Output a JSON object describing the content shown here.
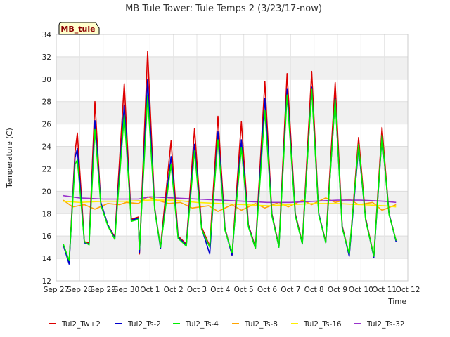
{
  "chart_data": {
    "type": "line",
    "title": "MB Tule Tower: Tule Temps 2 (3/23/17-now)",
    "xlabel": "Time",
    "ylabel": "Temperature (C)",
    "badge": "MB_tule",
    "ylim": [
      12,
      34
    ],
    "yticks": [
      12,
      14,
      16,
      18,
      20,
      22,
      24,
      26,
      28,
      30,
      32,
      34
    ],
    "xlim": [
      0,
      15
    ],
    "xticks": [
      {
        "pos": 0,
        "label": "Sep 27"
      },
      {
        "pos": 1,
        "label": "Sep 28"
      },
      {
        "pos": 2,
        "label": "Sep 29"
      },
      {
        "pos": 3,
        "label": "Sep 30"
      },
      {
        "pos": 4,
        "label": "Oct 1"
      },
      {
        "pos": 5,
        "label": "Oct 2"
      },
      {
        "pos": 6,
        "label": "Oct 3"
      },
      {
        "pos": 7,
        "label": "Oct 4"
      },
      {
        "pos": 8,
        "label": "Oct 5"
      },
      {
        "pos": 9,
        "label": "Oct 6"
      },
      {
        "pos": 10,
        "label": "Oct 7"
      },
      {
        "pos": 11,
        "label": "Oct 8"
      },
      {
        "pos": 12,
        "label": "Oct 9"
      },
      {
        "pos": 13,
        "label": "Oct 10"
      },
      {
        "pos": 14,
        "label": "Oct 11"
      },
      {
        "pos": 15,
        "label": "Oct 12"
      }
    ],
    "series": [
      {
        "name": "Tul2_Tw+2",
        "color": "#dd0000",
        "x": [
          0.3,
          0.55,
          0.8,
          0.9,
          1.2,
          1.4,
          1.65,
          1.9,
          2.2,
          2.5,
          2.9,
          3.2,
          3.5,
          3.55,
          3.9,
          4.2,
          4.45,
          4.9,
          5.2,
          5.55,
          5.9,
          6.2,
          6.55,
          6.9,
          7.2,
          7.5,
          7.9,
          8.2,
          8.5,
          8.9,
          9.2,
          9.5,
          9.85,
          10.2,
          10.5,
          10.9,
          11.2,
          11.5,
          11.9,
          12.2,
          12.5,
          12.9,
          13.2,
          13.55,
          13.9,
          14.2,
          14.5
        ],
        "values": [
          15.2,
          13.6,
          23.5,
          25.2,
          15.5,
          15.4,
          28.0,
          19.0,
          17.0,
          15.9,
          29.6,
          17.5,
          17.7,
          14.4,
          32.5,
          18.5,
          15.0,
          24.5,
          16.0,
          15.3,
          25.6,
          16.8,
          15.1,
          26.7,
          16.7,
          14.3,
          26.2,
          17.0,
          15.0,
          29.8,
          18.0,
          15.1,
          30.5,
          18.0,
          15.4,
          30.7,
          18.0,
          15.5,
          29.7,
          16.9,
          14.3,
          24.8,
          17.6,
          14.2,
          25.7,
          18.0,
          15.6
        ]
      },
      {
        "name": "Tul2_Ts-2",
        "color": "#0000cc",
        "x": [
          0.3,
          0.55,
          0.8,
          0.9,
          1.2,
          1.4,
          1.65,
          1.9,
          2.2,
          2.5,
          2.9,
          3.2,
          3.5,
          3.55,
          3.9,
          4.2,
          4.45,
          4.9,
          5.2,
          5.55,
          5.9,
          6.2,
          6.55,
          6.9,
          7.2,
          7.5,
          7.9,
          8.2,
          8.5,
          8.9,
          9.2,
          9.5,
          9.85,
          10.2,
          10.5,
          10.9,
          11.2,
          11.5,
          11.9,
          12.2,
          12.5,
          12.9,
          13.2,
          13.55,
          13.9,
          14.2,
          14.5
        ],
        "values": [
          15.2,
          13.5,
          23.0,
          23.8,
          15.4,
          15.3,
          26.3,
          19.0,
          17.0,
          15.8,
          27.7,
          17.4,
          17.6,
          14.5,
          30.0,
          18.4,
          14.9,
          23.1,
          15.9,
          15.2,
          24.2,
          16.7,
          14.4,
          25.3,
          16.6,
          14.3,
          24.6,
          16.9,
          14.9,
          28.3,
          17.9,
          15.0,
          29.1,
          17.9,
          15.3,
          29.3,
          18.0,
          15.4,
          28.3,
          16.8,
          14.2,
          23.9,
          17.5,
          14.1,
          24.9,
          18.0,
          15.5
        ]
      },
      {
        "name": "Tul2_Ts-4",
        "color": "#00ee00",
        "x": [
          0.3,
          0.55,
          0.8,
          0.9,
          1.2,
          1.4,
          1.65,
          1.9,
          2.2,
          2.5,
          2.9,
          3.2,
          3.5,
          3.55,
          3.9,
          4.2,
          4.45,
          4.9,
          5.2,
          5.55,
          5.9,
          6.2,
          6.55,
          6.9,
          7.2,
          7.5,
          7.9,
          8.2,
          8.5,
          8.9,
          9.2,
          9.5,
          9.85,
          10.2,
          10.5,
          10.9,
          11.2,
          11.5,
          11.9,
          12.2,
          12.5,
          12.9,
          13.2,
          13.55,
          13.9,
          14.2,
          14.5
        ],
        "values": [
          15.3,
          13.8,
          22.4,
          22.8,
          15.5,
          15.2,
          25.5,
          18.8,
          16.9,
          15.7,
          26.8,
          17.3,
          17.5,
          14.8,
          28.5,
          18.3,
          15.0,
          22.4,
          15.8,
          15.1,
          23.6,
          16.6,
          15.0,
          24.6,
          16.5,
          14.5,
          23.9,
          16.8,
          14.9,
          27.2,
          17.8,
          15.0,
          28.6,
          17.8,
          15.3,
          29.1,
          17.9,
          15.4,
          28.2,
          16.7,
          14.4,
          24.2,
          17.4,
          14.2,
          25.0,
          17.9,
          15.6
        ]
      },
      {
        "name": "Tul2_Ts-8",
        "color": "#ffa500",
        "x": [
          0.3,
          0.7,
          1.2,
          1.65,
          2.2,
          2.7,
          3.0,
          3.5,
          3.9,
          4.3,
          4.8,
          5.3,
          5.8,
          6.5,
          6.9,
          7.5,
          7.9,
          8.5,
          8.9,
          9.5,
          9.9,
          10.5,
          10.9,
          11.5,
          11.9,
          12.5,
          12.9,
          13.5,
          13.9,
          14.5
        ],
        "values": [
          19.2,
          18.6,
          18.8,
          18.4,
          18.9,
          18.8,
          19.0,
          18.9,
          19.5,
          19.2,
          18.9,
          19.0,
          18.5,
          18.7,
          18.2,
          18.8,
          18.3,
          18.9,
          18.5,
          19.0,
          18.6,
          19.2,
          18.8,
          19.4,
          19.0,
          19.3,
          18.8,
          19.0,
          18.3,
          18.8
        ]
      },
      {
        "name": "Tul2_Ts-16",
        "color": "#ffee00",
        "x": [
          0.3,
          1.0,
          2.0,
          3.0,
          4.0,
          5.0,
          6.0,
          7.0,
          8.0,
          9.0,
          10.0,
          11.0,
          12.0,
          13.0,
          14.0,
          14.5
        ],
        "values": [
          19.1,
          19.0,
          19.1,
          19.1,
          19.2,
          19.2,
          19.0,
          18.9,
          18.8,
          18.7,
          18.8,
          18.9,
          18.9,
          18.8,
          18.7,
          18.6
        ]
      },
      {
        "name": "Tul2_Ts-32",
        "color": "#9932cc",
        "x": [
          0.3,
          1.0,
          2.0,
          3.0,
          3.5,
          4.0,
          5.0,
          6.0,
          7.0,
          8.0,
          9.0,
          10.0,
          11.0,
          12.0,
          13.0,
          14.0,
          14.5
        ],
        "values": [
          19.6,
          19.4,
          19.3,
          19.3,
          19.3,
          19.5,
          19.4,
          19.3,
          19.2,
          19.1,
          19.0,
          19.0,
          19.1,
          19.2,
          19.2,
          19.1,
          19.0
        ]
      }
    ]
  }
}
